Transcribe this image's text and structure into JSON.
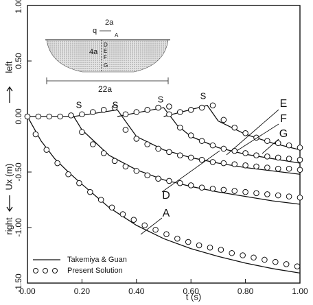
{
  "chart_data": {
    "type": "line",
    "x_label": "t (s)",
    "y_label": "Ux (m)",
    "y_direction_labels": [
      "left",
      "right"
    ],
    "xlim": [
      0,
      1.0
    ],
    "ylim": [
      -1.5,
      1.0
    ],
    "xticks": [
      {
        "value": 0,
        "label": "0.00"
      },
      {
        "value": 0.2,
        "label": "0.20"
      },
      {
        "value": 0.4,
        "label": "0.40"
      },
      {
        "value": 0.6,
        "label": "0.60"
      },
      {
        "value": 0.8,
        "label": "0.80"
      },
      {
        "value": 1.0,
        "label": "1.00"
      }
    ],
    "yticks": [
      {
        "value": -1.5,
        "label": "-1.50"
      },
      {
        "value": -1.0,
        "label": "-1.00"
      },
      {
        "value": -0.5,
        "label": "-0.50"
      },
      {
        "value": 0,
        "label": "0.00"
      },
      {
        "value": 0.5,
        "label": "0.50"
      },
      {
        "value": 1.0,
        "label": "1.00"
      }
    ],
    "legend_position": "lower left",
    "color": "#111111",
    "series": [
      {
        "name": "Takemiya & Guan",
        "style": "line",
        "curves": [
          {
            "label": "A",
            "x": [
              0,
              0.05,
              0.1,
              0.15,
              0.2,
              0.3,
              0.4,
              0.5,
              0.6,
              0.7,
              0.8,
              0.9,
              1.0
            ],
            "values": [
              0,
              -0.22,
              -0.38,
              -0.5,
              -0.61,
              -0.82,
              -0.98,
              -1.1,
              -1.19,
              -1.26,
              -1.32,
              -1.37,
              -1.41
            ]
          },
          {
            "label": "D",
            "x": [
              0,
              0.17,
              0.2,
              0.3,
              0.4,
              0.5,
              0.6,
              0.7,
              0.8,
              0.9,
              1.0
            ],
            "values": [
              0,
              0,
              -0.12,
              -0.35,
              -0.48,
              -0.57,
              -0.63,
              -0.68,
              -0.72,
              -0.76,
              -0.79
            ]
          },
          {
            "label": "E",
            "x": [
              0.17,
              0.33,
              0.4,
              0.5,
              0.6,
              0.7,
              0.8,
              0.9,
              1.0
            ],
            "values": [
              0,
              0.06,
              -0.18,
              -0.3,
              -0.37,
              -0.42,
              -0.46,
              -0.49,
              -0.52
            ]
          },
          {
            "label": "F",
            "x": [
              0.33,
              0.5,
              0.55,
              0.6,
              0.7,
              0.8,
              0.9,
              1.0
            ],
            "values": [
              0,
              0.08,
              -0.08,
              -0.18,
              -0.28,
              -0.34,
              -0.38,
              -0.42
            ]
          },
          {
            "label": "G",
            "x": [
              0.5,
              0.66,
              0.7,
              0.8,
              0.9,
              1.0
            ],
            "values": [
              0,
              0.1,
              -0.04,
              -0.16,
              -0.24,
              -0.3
            ]
          }
        ]
      },
      {
        "name": "Present Solution",
        "style": "circles",
        "curves": [
          {
            "x": [
              0,
              0.03,
              0.07,
              0.11,
              0.15,
              0.19,
              0.23,
              0.27,
              0.31,
              0.35,
              0.39,
              0.43,
              0.47,
              0.51,
              0.55,
              0.59,
              0.63,
              0.67,
              0.71,
              0.75,
              0.79,
              0.83,
              0.87,
              0.91,
              0.95,
              0.99
            ],
            "values": [
              0,
              -0.16,
              -0.3,
              -0.42,
              -0.52,
              -0.6,
              -0.68,
              -0.75,
              -0.82,
              -0.88,
              -0.93,
              -0.98,
              -1.02,
              -1.06,
              -1.1,
              -1.13,
              -1.16,
              -1.18,
              -1.2,
              -1.23,
              -1.25,
              -1.27,
              -1.29,
              -1.31,
              -1.33,
              -1.35
            ]
          },
          {
            "x": [
              0,
              0.04,
              0.08,
              0.12,
              0.16,
              0.2,
              0.24,
              0.28,
              0.32,
              0.36,
              0.4,
              0.44,
              0.48,
              0.52,
              0.56,
              0.6,
              0.64,
              0.68,
              0.72,
              0.76,
              0.8,
              0.84,
              0.88,
              0.92,
              0.96,
              1.0
            ],
            "values": [
              0,
              0,
              0,
              0,
              0.01,
              -0.14,
              -0.25,
              -0.33,
              -0.4,
              -0.45,
              -0.49,
              -0.53,
              -0.56,
              -0.58,
              -0.6,
              -0.62,
              -0.64,
              -0.65,
              -0.66,
              -0.67,
              -0.68,
              -0.69,
              -0.7,
              -0.71,
              -0.72,
              -0.73
            ]
          },
          {
            "x": [
              0.2,
              0.24,
              0.28,
              0.32,
              0.36,
              0.4,
              0.44,
              0.48,
              0.52,
              0.56,
              0.6,
              0.64,
              0.68,
              0.72,
              0.76,
              0.8,
              0.84,
              0.88,
              0.92,
              0.96,
              1.0
            ],
            "values": [
              0.02,
              0.04,
              0.06,
              0.08,
              -0.12,
              -0.2,
              -0.25,
              -0.29,
              -0.32,
              -0.35,
              -0.37,
              -0.39,
              -0.41,
              -0.42,
              -0.43,
              -0.44,
              -0.45,
              -0.46,
              -0.47,
              -0.47,
              -0.48
            ]
          },
          {
            "x": [
              0.36,
              0.4,
              0.44,
              0.48,
              0.52,
              0.56,
              0.6,
              0.64,
              0.68,
              0.72,
              0.76,
              0.8,
              0.84,
              0.88,
              0.92,
              0.96,
              1.0
            ],
            "values": [
              0.02,
              0.04,
              0.06,
              0.08,
              0.09,
              -0.1,
              -0.17,
              -0.22,
              -0.26,
              -0.29,
              -0.31,
              -0.33,
              -0.35,
              -0.36,
              -0.37,
              -0.38,
              -0.39
            ]
          },
          {
            "x": [
              0.52,
              0.56,
              0.6,
              0.64,
              0.68,
              0.72,
              0.76,
              0.8,
              0.84,
              0.88,
              0.92,
              0.96,
              1.0
            ],
            "values": [
              0.02,
              0.04,
              0.06,
              0.08,
              0.1,
              -0.03,
              -0.1,
              -0.15,
              -0.19,
              -0.22,
              -0.24,
              -0.26,
              -0.28
            ]
          }
        ]
      }
    ],
    "arrival_labels": [
      "S",
      "S",
      "S",
      "S"
    ],
    "inset": {
      "labels": [
        "2a",
        "q",
        "A",
        "D",
        "E",
        "F",
        "G",
        "4a",
        "22a"
      ]
    }
  }
}
